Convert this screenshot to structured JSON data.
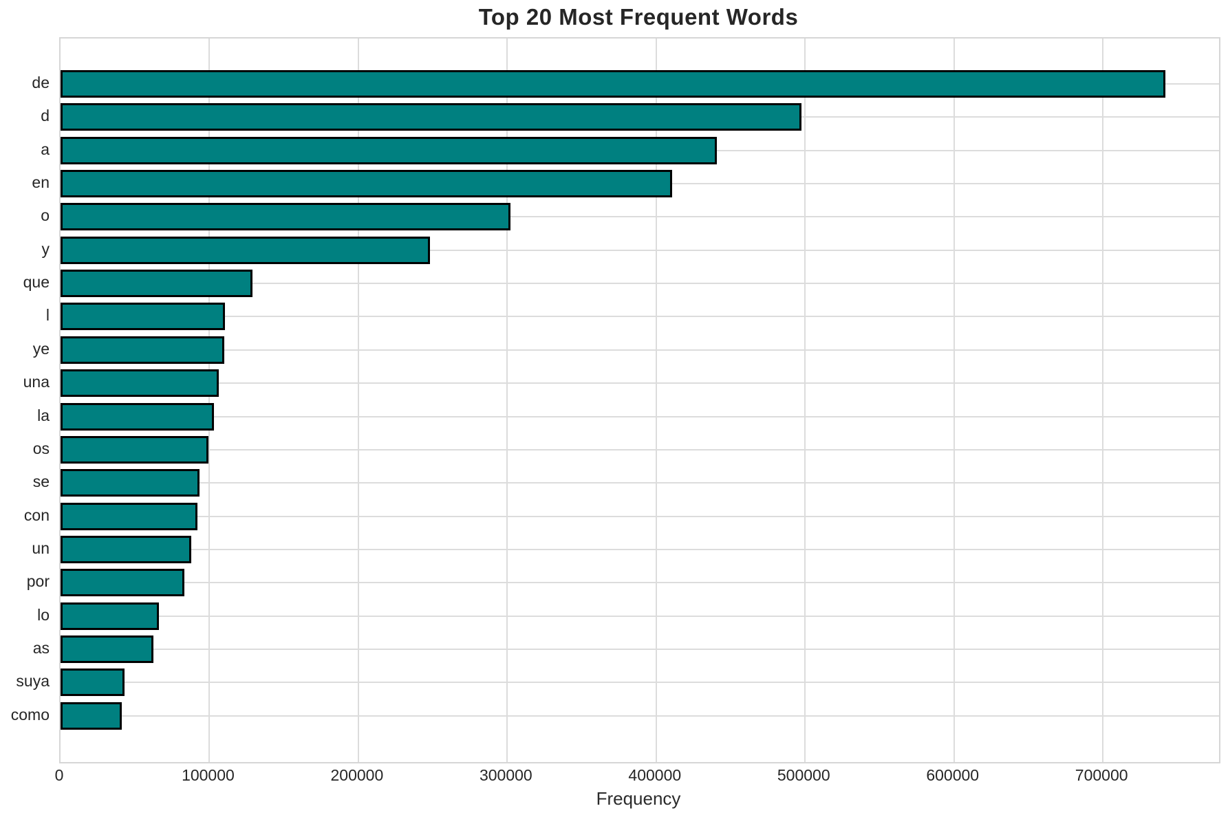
{
  "chart_data": {
    "type": "bar",
    "orientation": "horizontal",
    "title": "Top 20 Most Frequent Words",
    "xlabel": "Frequency",
    "ylabel": "",
    "categories": [
      "de",
      "d",
      "a",
      "en",
      "o",
      "y",
      "que",
      "l",
      "ye",
      "una",
      "la",
      "os",
      "se",
      "con",
      "un",
      "por",
      "lo",
      "as",
      "suya",
      "como"
    ],
    "values": [
      742000,
      497500,
      440700,
      410500,
      302000,
      248100,
      129000,
      110200,
      110000,
      106200,
      103200,
      99100,
      93400,
      92100,
      87800,
      83200,
      66000,
      62400,
      42800,
      40900
    ],
    "xlim": [
      0,
      778000
    ],
    "xticks": [
      0,
      100000,
      200000,
      300000,
      400000,
      500000,
      600000,
      700000
    ],
    "xtick_labels": [
      "0",
      "100000",
      "200000",
      "300000",
      "400000",
      "500000",
      "600000",
      "700000"
    ],
    "grid": true,
    "legend": "none",
    "bar_color": "#008080",
    "bar_edge_color": "#000000",
    "grid_color": "#dcdcdc",
    "spine_color": "#d6d6d6",
    "text_color": "#262626",
    "background_color": "#ffffff"
  }
}
